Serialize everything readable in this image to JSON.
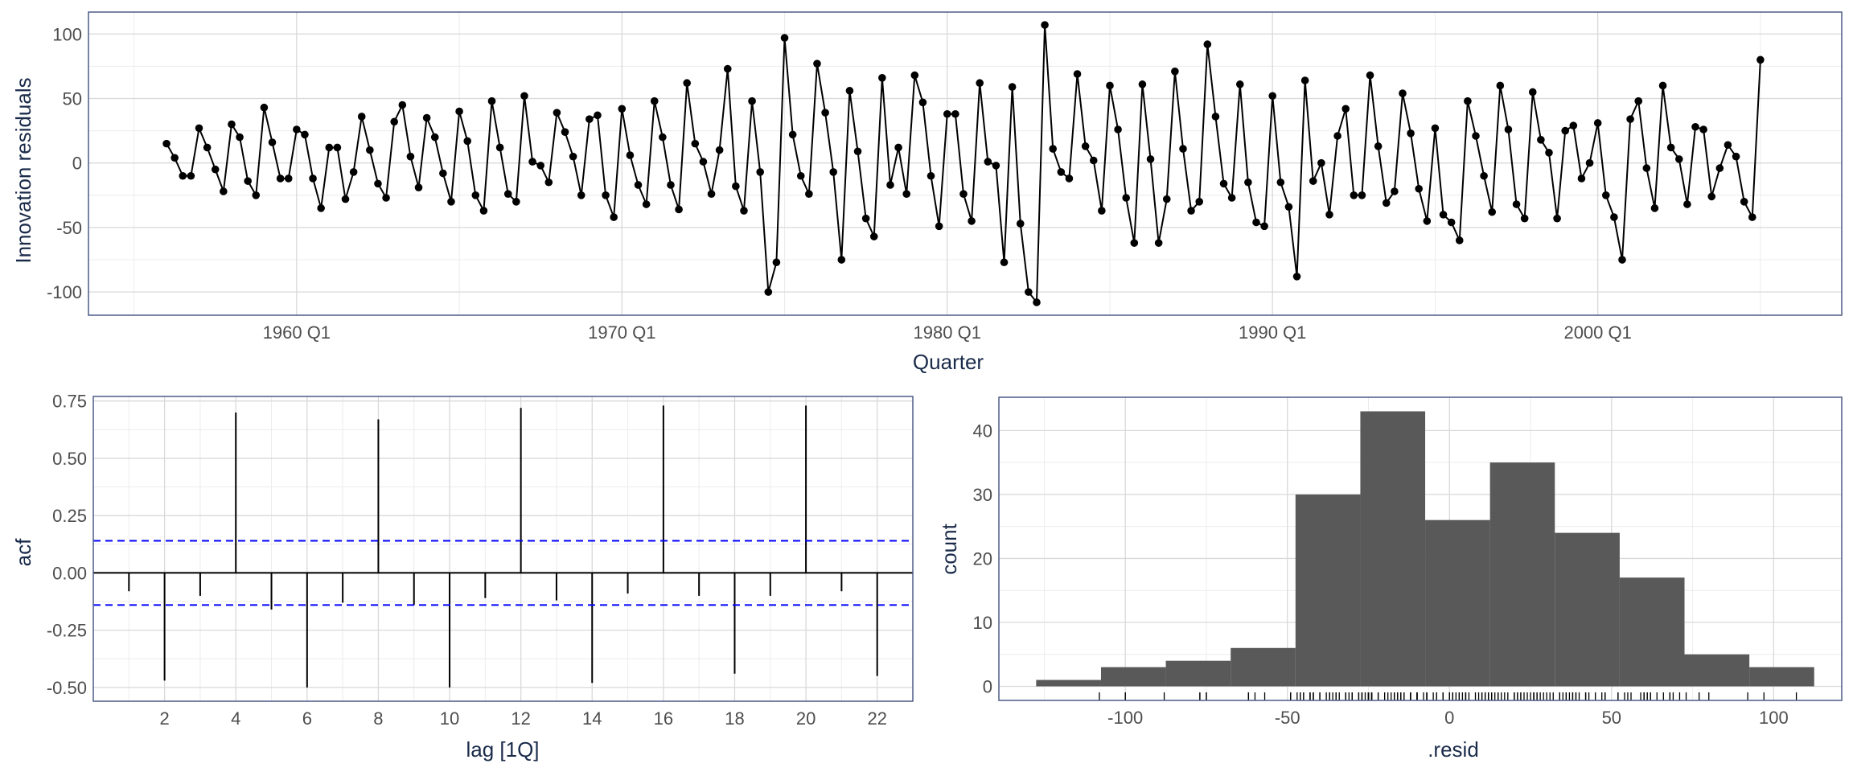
{
  "colors": {
    "panel_border": "#4d5b86",
    "grid": "#d9d9d9",
    "line": "#000000",
    "bar_fill": "#595959",
    "ci_line": "#0000ff",
    "axis_text": "#4d4d4d",
    "title_text": "#1a2b4a"
  },
  "chart_data": [
    {
      "type": "line",
      "xlabel": "Quarter",
      "ylabel": "Innovation residuals",
      "x_ticks": [
        "1960 Q1",
        "1970 Q1",
        "1980 Q1",
        "1990 Q1",
        "2000 Q1"
      ],
      "x_tick_values": [
        1960,
        1970,
        1980,
        1990,
        2000
      ],
      "y_ticks": [
        "100",
        "50",
        "0",
        "-50",
        "-100"
      ],
      "y_tick_values": [
        100,
        50,
        0,
        -50,
        -100
      ],
      "xlim": [
        1953.6,
        2007.5
      ],
      "ylim": [
        -118,
        117
      ],
      "x_start": 1956.0,
      "x_step": 0.25,
      "values": [
        15,
        4,
        -10,
        -10,
        27,
        12,
        -5,
        -22,
        30,
        20,
        -14,
        -25,
        43,
        16,
        -12,
        -12,
        26,
        22,
        -12,
        -35,
        12,
        12,
        -28,
        -7,
        36,
        10,
        -16,
        -27,
        32,
        45,
        5,
        -19,
        35,
        20,
        -8,
        -30,
        40,
        17,
        -25,
        -37,
        48,
        12,
        -24,
        -30,
        52,
        1,
        -2,
        -15,
        39,
        24,
        5,
        -25,
        34,
        37,
        -25,
        -42,
        42,
        6,
        -17,
        -32,
        48,
        20,
        -17,
        -36,
        62,
        15,
        1,
        -24,
        10,
        73,
        -18,
        -37,
        48,
        -7,
        -100,
        -77,
        97,
        22,
        -10,
        -24,
        77,
        39,
        -7,
        -75,
        56,
        9,
        -43,
        -57,
        66,
        -17,
        12,
        -24,
        68,
        47,
        -10,
        -49,
        38,
        38,
        -24,
        -45,
        62,
        1,
        -2,
        -77,
        59,
        -47,
        -100,
        -108,
        107,
        11,
        -7,
        -12,
        69,
        13,
        2,
        -37,
        60,
        26,
        -27,
        -62,
        61,
        3,
        -62,
        -28,
        71,
        11,
        -37,
        -30,
        92,
        36,
        -16,
        -27,
        61,
        -15,
        -46,
        -49,
        52,
        -15,
        -34,
        -88,
        64,
        -14,
        0,
        -40,
        21,
        42,
        -25,
        -25,
        68,
        13,
        -31,
        -22,
        54,
        23,
        -20,
        -45,
        27,
        -40,
        -46,
        -60,
        48,
        21,
        -10,
        -38,
        60,
        26,
        -32,
        -43,
        55,
        18,
        8,
        -43,
        25,
        29,
        -12,
        0,
        31,
        -25,
        -42,
        -75,
        34,
        48,
        -4,
        -35,
        60,
        12,
        3,
        -32,
        28,
        26,
        -26,
        -4,
        14,
        5,
        -30,
        -42,
        80
      ]
    },
    {
      "type": "bar",
      "subtype": "acf",
      "xlabel": "lag [1Q]",
      "ylabel": "acf",
      "x_ticks": [
        "2",
        "4",
        "6",
        "8",
        "10",
        "12",
        "14",
        "16",
        "18",
        "20",
        "22"
      ],
      "x_tick_values": [
        2,
        4,
        6,
        8,
        10,
        12,
        14,
        16,
        18,
        20,
        22
      ],
      "y_ticks": [
        "0.75",
        "0.50",
        "0.25",
        "0.00",
        "-0.25",
        "-0.50"
      ],
      "y_tick_values": [
        0.75,
        0.5,
        0.25,
        0,
        -0.25,
        -0.5
      ],
      "xlim": [
        0.0,
        23.0
      ],
      "ylim": [
        -0.56,
        0.77
      ],
      "lags": [
        1,
        2,
        3,
        4,
        5,
        6,
        7,
        8,
        9,
        10,
        11,
        12,
        13,
        14,
        15,
        16,
        17,
        18,
        19,
        20,
        21,
        22
      ],
      "values": [
        -0.08,
        -0.47,
        -0.1,
        0.7,
        -0.16,
        -0.5,
        -0.13,
        0.67,
        -0.14,
        -0.5,
        -0.11,
        0.72,
        -0.12,
        -0.48,
        -0.09,
        0.73,
        -0.1,
        -0.44,
        -0.1,
        0.73,
        -0.08,
        -0.45
      ],
      "ci_bound": 0.14
    },
    {
      "type": "bar",
      "subtype": "histogram",
      "xlabel": ".resid",
      "ylabel": "count",
      "x_ticks": [
        "-100",
        "-50",
        "0",
        "50",
        "100"
      ],
      "x_tick_values": [
        -100,
        -50,
        0,
        50,
        100
      ],
      "y_ticks": [
        "40",
        "30",
        "20",
        "10",
        "0"
      ],
      "y_tick_values": [
        40,
        30,
        20,
        10,
        0
      ],
      "xlim": [
        -139,
        121
      ],
      "ylim": [
        -2.2,
        45.2
      ],
      "bins": [
        {
          "x0": -127.5,
          "x1": -107.5,
          "count": 1
        },
        {
          "x0": -107.5,
          "x1": -87.5,
          "count": 3
        },
        {
          "x0": -87.5,
          "x1": -67.5,
          "count": 4
        },
        {
          "x0": -67.5,
          "x1": -47.5,
          "count": 6
        },
        {
          "x0": -47.5,
          "x1": -27.5,
          "count": 30
        },
        {
          "x0": -27.5,
          "x1": -7.5,
          "count": 43
        },
        {
          "x0": -7.5,
          "x1": 12.5,
          "count": 26
        },
        {
          "x0": 12.5,
          "x1": 32.5,
          "count": 35
        },
        {
          "x0": 32.5,
          "x1": 52.5,
          "count": 24
        },
        {
          "x0": 52.5,
          "x1": 72.5,
          "count": 17
        },
        {
          "x0": 72.5,
          "x1": 92.5,
          "count": 5
        },
        {
          "x0": 92.5,
          "x1": 112.5,
          "count": 3
        }
      ]
    }
  ]
}
